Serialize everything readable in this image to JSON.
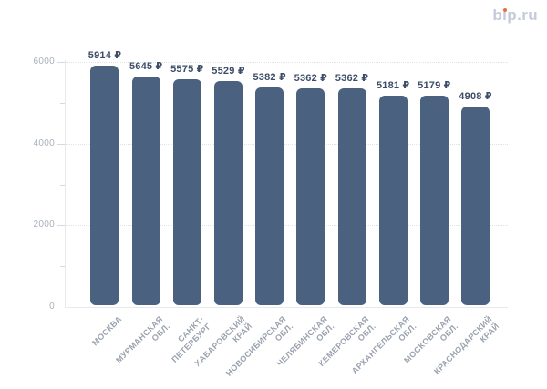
{
  "logo": {
    "part_b": "b",
    "part_i_dotless": "ı",
    "part_rest": "p.ru",
    "dot_color": "#ee6a41",
    "text_color": "#c5cbd9"
  },
  "chart_data": {
    "type": "bar",
    "categories": [
      "МОСКВА",
      "МУРМАНСКАЯ ОБЛ.",
      "САНКТ-ПЕТЕРБУРГ",
      "ХАБАРОВСКИЙ КРАЙ",
      "НОВОСИБИРСКАЯ ОБЛ.",
      "ЧЕЛЯБИНСКАЯ ОБЛ.",
      "КЕМЕРОВСКАЯ ОБЛ.",
      "АРХАНГЕЛЬСКАЯ ОБЛ.",
      "МОСКОВСКАЯ ОБЛ.",
      "КРАСНОДАРСКИЙ КРАЙ"
    ],
    "category_lines": [
      [
        "МОСКВА"
      ],
      [
        "МУРМАНСКАЯ",
        "ОБЛ."
      ],
      [
        "САНКТ-",
        "ПЕТЕРБУРГ"
      ],
      [
        "ХАБАРОВСКИЙ",
        "КРАЙ"
      ],
      [
        "НОВОСИБИРСКАЯ",
        "ОБЛ."
      ],
      [
        "ЧЕЛЯБИНСКАЯ",
        "ОБЛ."
      ],
      [
        "КЕМЕРОВСКАЯ",
        "ОБЛ."
      ],
      [
        "АРХАНГЕЛЬСКАЯ",
        "ОБЛ."
      ],
      [
        "МОСКОВСКАЯ",
        "ОБЛ."
      ],
      [
        "КРАСНОДАРСКИЙ",
        "КРАЙ"
      ]
    ],
    "values": [
      5914,
      5645,
      5575,
      5529,
      5382,
      5362,
      5362,
      5181,
      5179,
      4908
    ],
    "currency_symbol": "₽",
    "ylim": [
      0,
      6000
    ],
    "y_ticks": [
      0,
      2000,
      4000,
      6000
    ],
    "y_minor_ticks": [
      1000,
      3000,
      5000
    ],
    "grid": "dotted horizontal lines at major ticks",
    "legend": "none",
    "bar_color": "#4b6180",
    "value_label_color": "#3d4d68",
    "y_axis_label_color": "#a9b1bd",
    "x_axis_label_color": "#9aa2ae"
  }
}
